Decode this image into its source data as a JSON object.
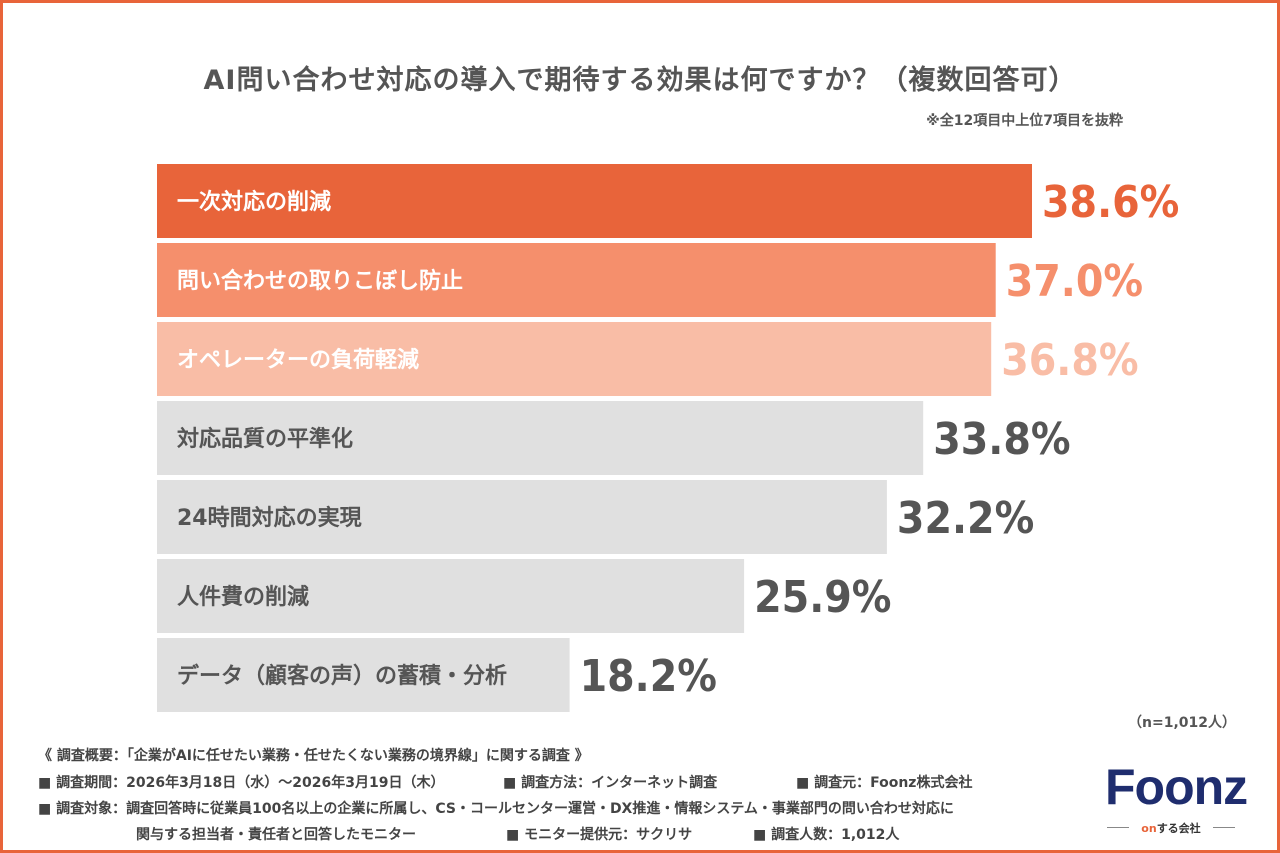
{
  "header": {
    "title": "AI問い合わせ対応の導入で期待する効果は何ですか？（複数回答可）",
    "note": "※全12項目中上位7項目を抜粋"
  },
  "chart_data": {
    "type": "bar",
    "orientation": "horizontal",
    "categories": [
      "一次対応の削減",
      "問い合わせの取りこぼし防止",
      "オペレーターの負荷軽減",
      "対応品質の平準化",
      "24時間対応の実現",
      "人件費の削減",
      "データ（顧客の声）の蓄積・分析"
    ],
    "values": [
      38.6,
      37.0,
      36.8,
      33.8,
      32.2,
      25.9,
      18.2
    ],
    "value_labels": [
      "38.6%",
      "37.0%",
      "36.8%",
      "33.8%",
      "32.2%",
      "25.9%",
      "18.2%"
    ],
    "bar_colors": [
      "#e8643a",
      "#f58f6c",
      "#f9bda6",
      "#e0e0e0",
      "#e0e0e0",
      "#e0e0e0",
      "#e0e0e0"
    ],
    "label_colors": [
      "#ffffff",
      "#ffffff",
      "#ffffff",
      "#555555",
      "#555555",
      "#555555",
      "#555555"
    ],
    "value_colors": [
      "#e8643a",
      "#f58f6c",
      "#f9bda6",
      "#555555",
      "#555555",
      "#555555",
      "#555555"
    ],
    "xlim": [
      0,
      38.6
    ],
    "grid": false
  },
  "sample_note": "（n=1,012人）",
  "footer": {
    "overview": "《 調査概要：「企業がAIに任せたい業務・任せたくない業務の境界線」に関する調査 》",
    "period": "■ 調査期間：2026年3月18日（水）〜2026年3月19日（木）",
    "method": "■ 調査方法：インターネット調査",
    "source": "■ 調査元：Foonz株式会社",
    "target_line1": "■ 調査対象：調査回答時に従業員100名以上の企業に所属し、CS・コールセンター運営・DX推進・情報システム・事業部門の問い合わせ対応に",
    "target_line2": "関与する担当者・責任者と回答したモニター",
    "provider": "■ モニター提供元：サクリサ",
    "count": "■ 調査人数：1,012人"
  },
  "logo": {
    "word": "Foonz",
    "tag_on": "on",
    "tag_rest": "する会社"
  }
}
